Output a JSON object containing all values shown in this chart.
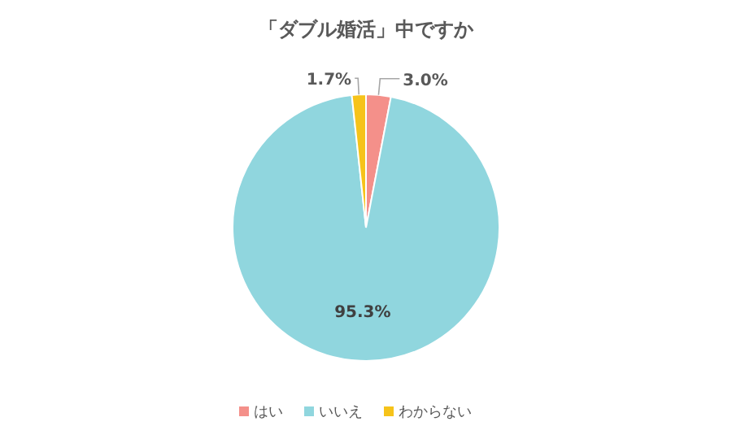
{
  "chart_data": {
    "type": "pie",
    "title": "「ダブル婚活」中ですか",
    "categories": [
      "はい",
      "いいえ",
      "わからない"
    ],
    "values": [
      3.0,
      95.3,
      1.7
    ],
    "value_labels": [
      "3.0%",
      "95.3%",
      "1.7%"
    ],
    "colors": [
      "#f4908a",
      "#90d6de",
      "#f6c31a"
    ],
    "legend": "bottom"
  }
}
